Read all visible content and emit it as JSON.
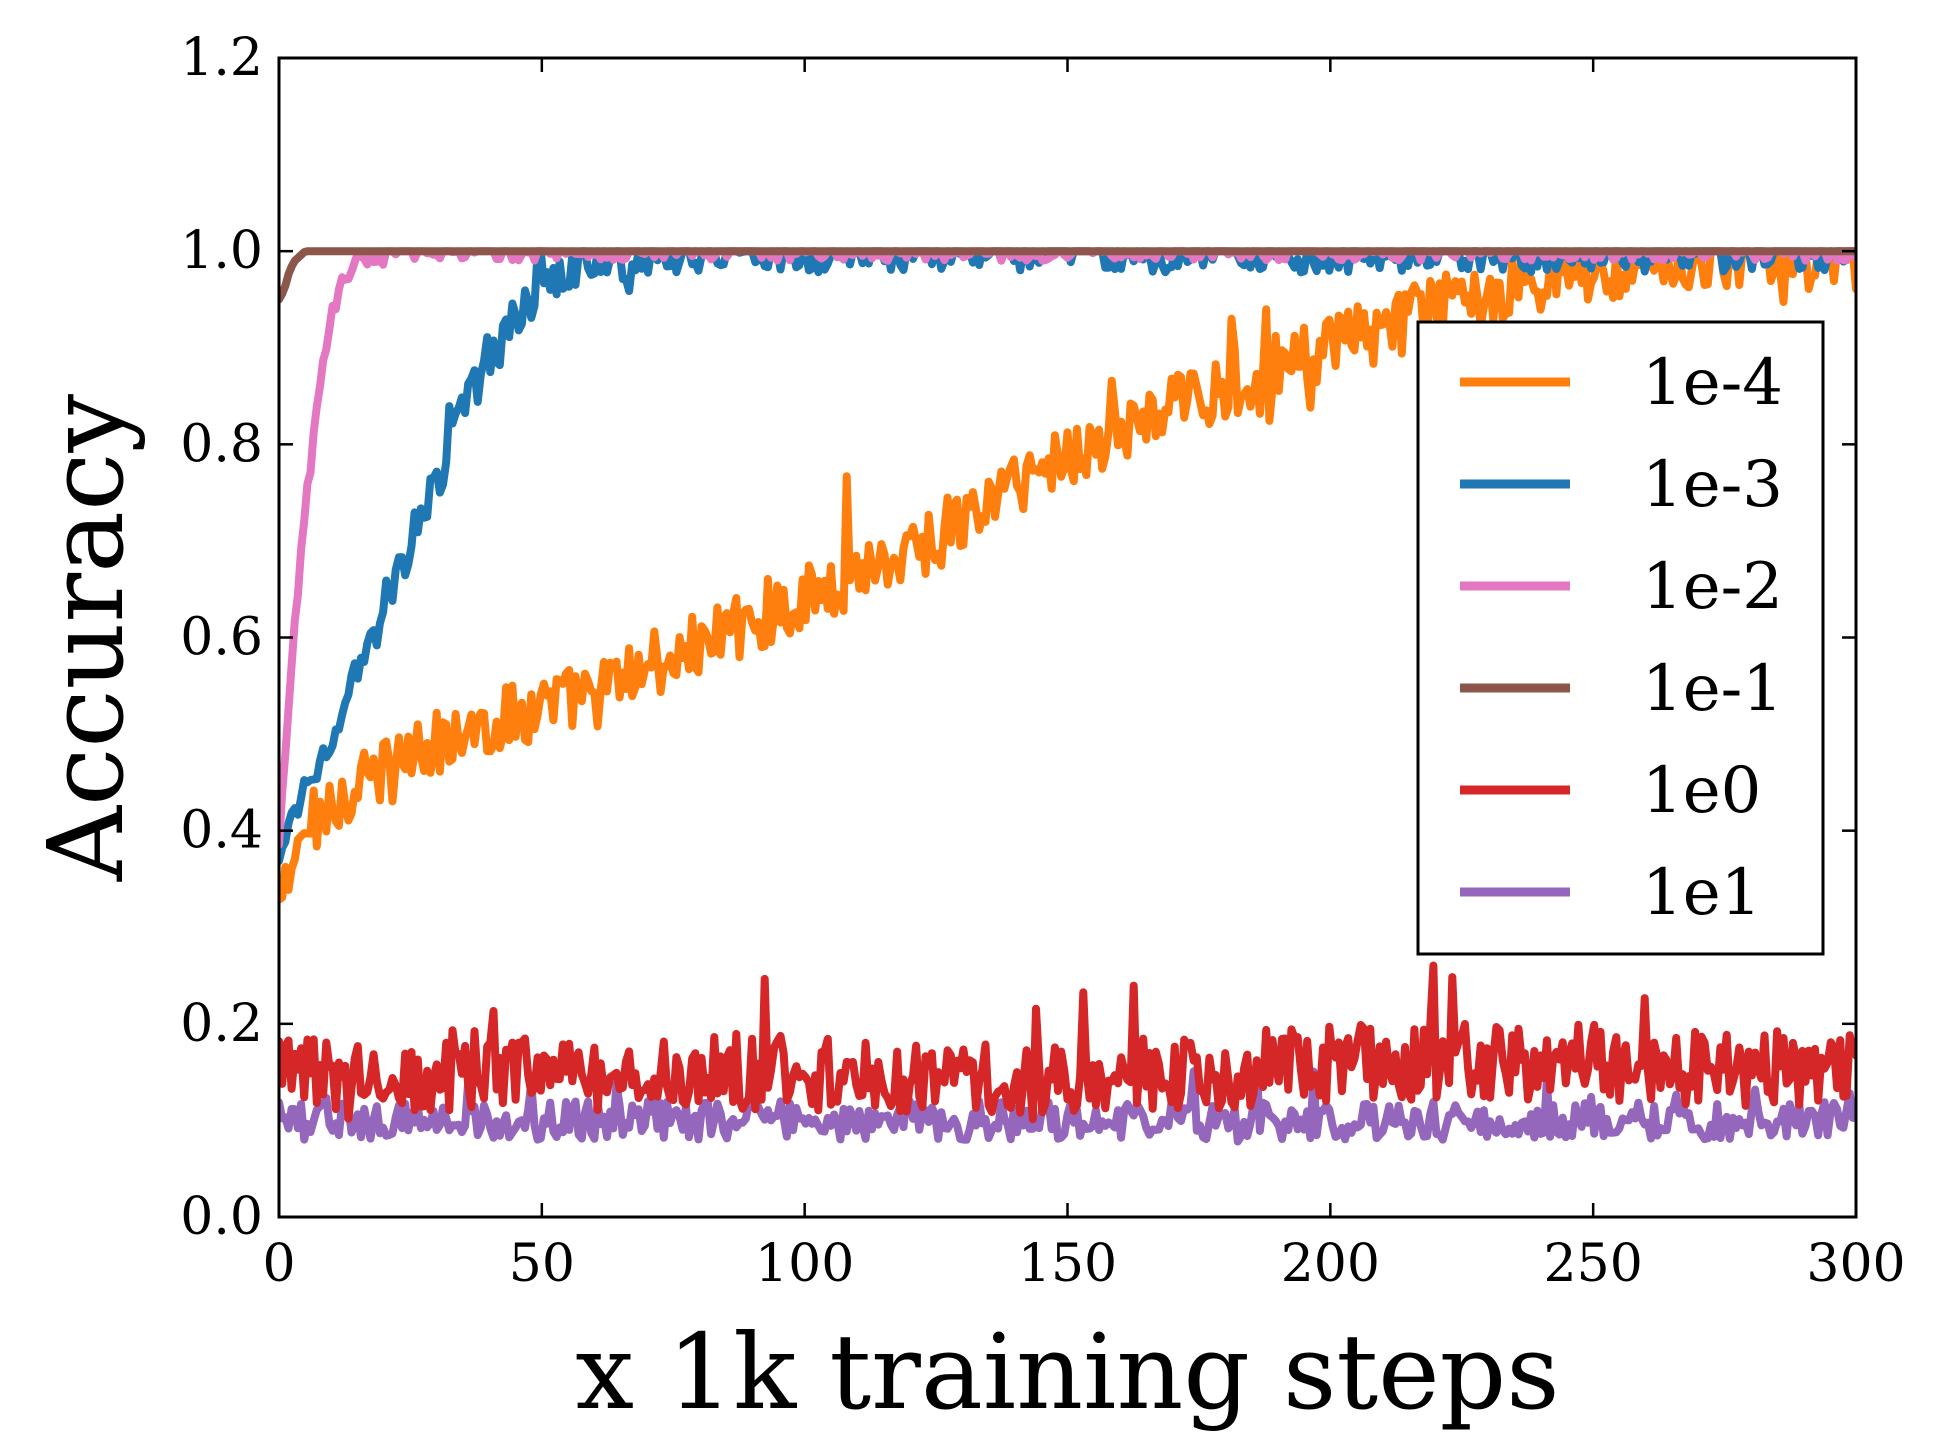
{
  "chart_data": {
    "type": "line",
    "title": "",
    "xlabel": "x 1k training steps",
    "ylabel": "Accuracy",
    "xlim": [
      0,
      300
    ],
    "ylim": [
      0.0,
      1.2
    ],
    "xticks": [
      0,
      50,
      100,
      150,
      200,
      250,
      300
    ],
    "yticks": [
      0.0,
      0.2,
      0.4,
      0.6,
      0.8,
      1.0,
      1.2
    ],
    "xtick_labels": [
      "0",
      "50",
      "100",
      "150",
      "200",
      "250",
      "300"
    ],
    "ytick_labels": [
      "0.0",
      "0.2",
      "0.4",
      "0.6",
      "0.8",
      "1.0",
      "1.2"
    ],
    "grid": false,
    "legend_position": "right",
    "series": [
      {
        "name": "1e-4",
        "color": "#ff7f0e",
        "x": [
          0,
          2,
          5,
          10,
          20,
          30,
          40,
          50,
          60,
          70,
          80,
          90,
          100,
          110,
          120,
          130,
          140,
          150,
          160,
          170,
          180,
          190,
          200,
          210,
          220,
          230,
          240,
          250,
          260,
          270,
          280,
          290,
          300
        ],
        "values": [
          0.32,
          0.35,
          0.4,
          0.43,
          0.46,
          0.49,
          0.51,
          0.53,
          0.54,
          0.57,
          0.59,
          0.62,
          0.64,
          0.67,
          0.69,
          0.72,
          0.76,
          0.79,
          0.81,
          0.84,
          0.86,
          0.88,
          0.9,
          0.92,
          0.94,
          0.96,
          0.97,
          0.98,
          0.99,
          0.99,
          1.0,
          0.99,
          0.99
        ],
        "noise": 0.035
      },
      {
        "name": "1e-3",
        "color": "#1f77b4",
        "x": [
          0,
          3,
          6,
          10,
          15,
          20,
          25,
          30,
          35,
          40,
          45,
          50,
          55,
          60,
          70,
          80,
          90,
          100,
          110,
          120,
          300
        ],
        "values": [
          0.36,
          0.42,
          0.46,
          0.5,
          0.56,
          0.62,
          0.7,
          0.76,
          0.84,
          0.88,
          0.93,
          0.96,
          0.98,
          0.99,
          0.995,
          1.0,
          1.0,
          1.0,
          1.0,
          1.0,
          1.0
        ],
        "noise": 0.022
      },
      {
        "name": "1e-2",
        "color": "#e377c2",
        "x": [
          0,
          2,
          4,
          6,
          8,
          10,
          12,
          15,
          20,
          30,
          300
        ],
        "values": [
          0.38,
          0.55,
          0.68,
          0.78,
          0.87,
          0.93,
          0.97,
          0.99,
          1.0,
          1.0,
          1.0
        ],
        "noise": 0.01
      },
      {
        "name": "1e-1",
        "color": "#8c564b",
        "x": [
          0,
          1,
          2,
          3,
          5,
          300
        ],
        "values": [
          0.95,
          0.96,
          0.98,
          0.99,
          1.0,
          1.0
        ],
        "noise": 0.0
      },
      {
        "name": "1e0",
        "color": "#d62728",
        "x": [
          0,
          50,
          100,
          150,
          200,
          250,
          300
        ],
        "values": [
          0.15,
          0.15,
          0.15,
          0.14,
          0.16,
          0.16,
          0.15
        ],
        "noise": 0.04
      },
      {
        "name": "1e1",
        "color": "#9467bd",
        "x": [
          0,
          50,
          100,
          150,
          200,
          250,
          300
        ],
        "values": [
          0.1,
          0.1,
          0.1,
          0.1,
          0.1,
          0.1,
          0.1
        ],
        "noise": 0.02
      }
    ]
  }
}
